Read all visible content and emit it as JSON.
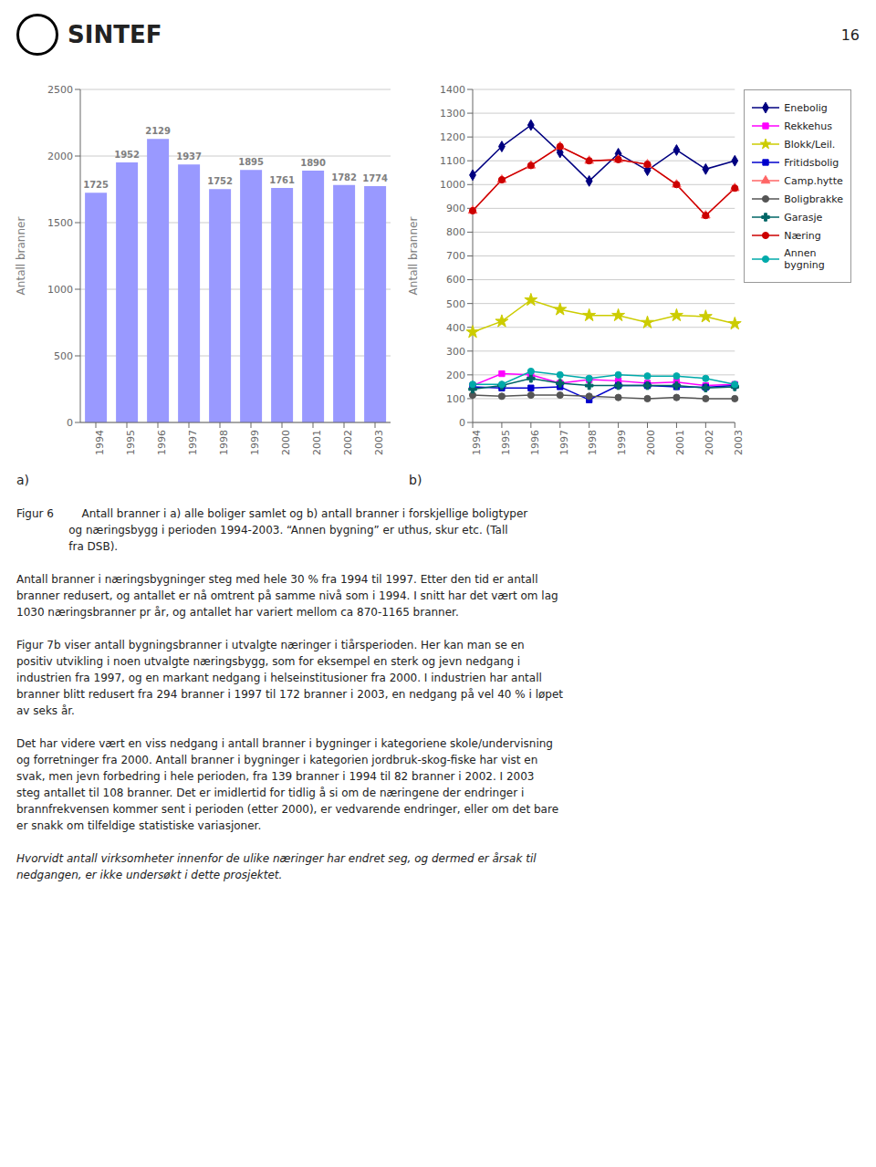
{
  "annotations": [
    "SINTEF",
    "16",
    "Figur 6        Antall branner i a) alle boliger samlet og b) antall branner i forskjellige boligtyper\n               og næringsbygg i perioden 1994-2003. “Annen bygning” er uthus, skur etc. (Tall\n               fra DSB).",
    "Antall branner i næringsbygninger steg med hele 30 % fra 1994 til 1997. Etter den tid er antall\nbranner redusert, og antallet er nå omtrent på samme nivå som i 1994. I snitt har det vært om lag\n1030 næringsbranner pr år, og antallet har variert mellom ca 870-1165 branner.",
    "Figur 7b viser antall bygningsbranner i utvalgte næringer i tiårsperioden. Her kan man se en\npositiv utvikling i noen utvalgte næringsbygg, som for eksempel en sterk og jevn nedgang i\nindustrien fra 1997, og en markant nedgang i helseinstitusioner fra 2000. I industrien har antall\nbranner blitt redusert fra 294 branner i 1997 til 172 branner i 2003, en nedgang på vel 40 % i løpet\nav seks år.",
    "Det har videre vært en viss nedgang i antall branner i bygninger i kategoriene skole/undervisning\nog forretninger fra 2000. Antall branner i bygninger i kategorien jordbruk-skog-fiske har vist en\nsvak, men jevn forbedring i hele perioden, fra 139 branner i 1994 til 82 branner i 2002. I 2003\nsteg antallet til 108 branner. Det er imidlertid for tidlig å si om de næringene der endringer i\nbrannfrekvensen kommer sent i perioden (etter 2000), er vedvarende endringer, eller om det bare\ner snakk om tilfeldige statistiske variasjoner.",
    "Hvorvidt antall virksomheter innenfor de ulike næringer har endret seg, og dermed er årsak til\nnedgangen, er ikke undersøkt i dette prosjektet."
  ],
  "chart_data": [
    {
      "type": "bar",
      "categories": [
        "1994",
        "1995",
        "1996",
        "1997",
        "1998",
        "1999",
        "2000",
        "2001",
        "2002",
        "2003"
      ],
      "values": [
        1725,
        1952,
        2129,
        1937,
        1752,
        1895,
        1761,
        1890,
        1782,
        1774
      ],
      "color": "#9999FF",
      "ylabel": "Antall branner",
      "ylim": [
        0,
        2500
      ],
      "yticks": [
        0,
        500,
        1000,
        1500,
        2000,
        2500
      ],
      "grid": true,
      "data_labels": true,
      "annotations": [
        "a)"
      ]
    },
    {
      "type": "line",
      "categories": [
        "1994",
        "1995",
        "1996",
        "1997",
        "1998",
        "1999",
        "2000",
        "2001",
        "2002",
        "2003"
      ],
      "series": [
        {
          "name": "Enebolig",
          "color": "#000080",
          "marker": "diamond",
          "values": [
            1040,
            1160,
            1250,
            1135,
            1015,
            1130,
            1060,
            1145,
            1065,
            1100
          ]
        },
        {
          "name": "Rekkehus",
          "color": "#FF00FF",
          "marker": "square",
          "values": [
            155,
            205,
            200,
            165,
            180,
            175,
            165,
            170,
            155,
            160
          ]
        },
        {
          "name": "Blokk/Leil.",
          "color": "#CCCC00",
          "marker": "star",
          "values": [
            380,
            425,
            515,
            475,
            450,
            450,
            420,
            450,
            445,
            415
          ]
        },
        {
          "name": "Fritidsbolig",
          "color": "#0000CC",
          "marker": "square",
          "values": [
            150,
            145,
            145,
            150,
            95,
            155,
            155,
            150,
            148,
            155
          ]
        },
        {
          "name": "Camp.hytte",
          "color": "#FF6666",
          "marker": "triangle",
          "values": [
            890,
            1020,
            1080,
            1160,
            1100,
            1105,
            1085,
            1000,
            870,
            985
          ]
        },
        {
          "name": "Boligbrakke",
          "color": "#555555",
          "marker": "circle",
          "values": [
            115,
            110,
            115,
            115,
            110,
            105,
            100,
            105,
            100,
            100
          ]
        },
        {
          "name": "Garasje",
          "color": "#006666",
          "marker": "cross",
          "values": [
            140,
            155,
            185,
            165,
            155,
            155,
            155,
            155,
            145,
            150
          ]
        },
        {
          "name": "Næring",
          "color": "#CC0000",
          "marker": "circle",
          "values": [
            890,
            1020,
            1080,
            1160,
            1100,
            1105,
            1085,
            1000,
            870,
            985
          ]
        },
        {
          "name": "Annen\nbygning",
          "color": "#00AAAA",
          "marker": "circle",
          "values": [
            160,
            160,
            215,
            200,
            185,
            200,
            195,
            195,
            185,
            160
          ]
        }
      ],
      "ylabel": "Antall branner",
      "ylim": [
        0,
        1400
      ],
      "yticks": [
        0,
        100,
        200,
        300,
        400,
        500,
        600,
        700,
        800,
        900,
        1000,
        1100,
        1200,
        1300,
        1400
      ],
      "grid": true,
      "legend": "right",
      "annotations": [
        "b)"
      ]
    }
  ]
}
